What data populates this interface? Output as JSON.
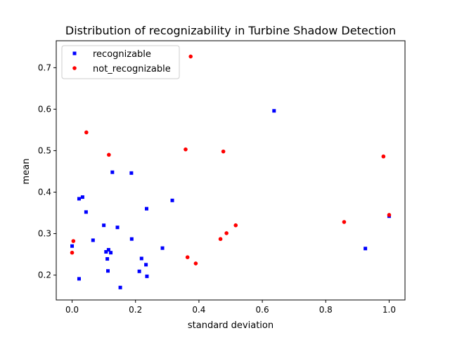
{
  "chart_data": {
    "type": "scatter",
    "title": "Distribution of recognizability in Turbine Shadow Detection",
    "xlabel": "standard deviation",
    "ylabel": "mean",
    "xlim": [
      -0.05,
      1.05
    ],
    "ylim": [
      0.14,
      0.765
    ],
    "xticks": [
      0.0,
      0.2,
      0.4,
      0.6,
      0.8,
      1.0
    ],
    "xtick_labels": [
      "0.0",
      "0.2",
      "0.4",
      "0.6",
      "0.8",
      "1.0"
    ],
    "yticks": [
      0.2,
      0.3,
      0.4,
      0.5,
      0.6,
      0.7
    ],
    "ytick_labels": [
      "0.2",
      "0.3",
      "0.4",
      "0.5",
      "0.6",
      "0.7"
    ],
    "grid": false,
    "legend_position": "top-left",
    "series": [
      {
        "name": "recognizable",
        "marker": "square",
        "color": "#0000ff",
        "points": [
          [
            0.0,
            0.27
          ],
          [
            0.022,
            0.384
          ],
          [
            0.033,
            0.388
          ],
          [
            0.044,
            0.352
          ],
          [
            0.022,
            0.191
          ],
          [
            0.066,
            0.284
          ],
          [
            0.1,
            0.32
          ],
          [
            0.107,
            0.256
          ],
          [
            0.111,
            0.239
          ],
          [
            0.115,
            0.261
          ],
          [
            0.113,
            0.21
          ],
          [
            0.122,
            0.254
          ],
          [
            0.127,
            0.448
          ],
          [
            0.143,
            0.315
          ],
          [
            0.152,
            0.17
          ],
          [
            0.187,
            0.446
          ],
          [
            0.188,
            0.287
          ],
          [
            0.212,
            0.209
          ],
          [
            0.219,
            0.24
          ],
          [
            0.233,
            0.225
          ],
          [
            0.235,
            0.36
          ],
          [
            0.236,
            0.197
          ],
          [
            0.285,
            0.265
          ],
          [
            0.316,
            0.38
          ],
          [
            0.637,
            0.596
          ],
          [
            0.925,
            0.264
          ],
          [
            1.0,
            0.342
          ]
        ]
      },
      {
        "name": "not_recognizable",
        "marker": "circle",
        "color": "#ff0000",
        "points": [
          [
            0.0,
            0.254
          ],
          [
            0.004,
            0.282
          ],
          [
            0.045,
            0.544
          ],
          [
            0.116,
            0.49
          ],
          [
            0.358,
            0.503
          ],
          [
            0.364,
            0.243
          ],
          [
            0.374,
            0.727
          ],
          [
            0.39,
            0.228
          ],
          [
            0.468,
            0.287
          ],
          [
            0.477,
            0.498
          ],
          [
            0.487,
            0.301
          ],
          [
            0.516,
            0.32
          ],
          [
            0.858,
            0.328
          ],
          [
            0.982,
            0.486
          ],
          [
            1.0,
            0.345
          ]
        ]
      }
    ]
  }
}
